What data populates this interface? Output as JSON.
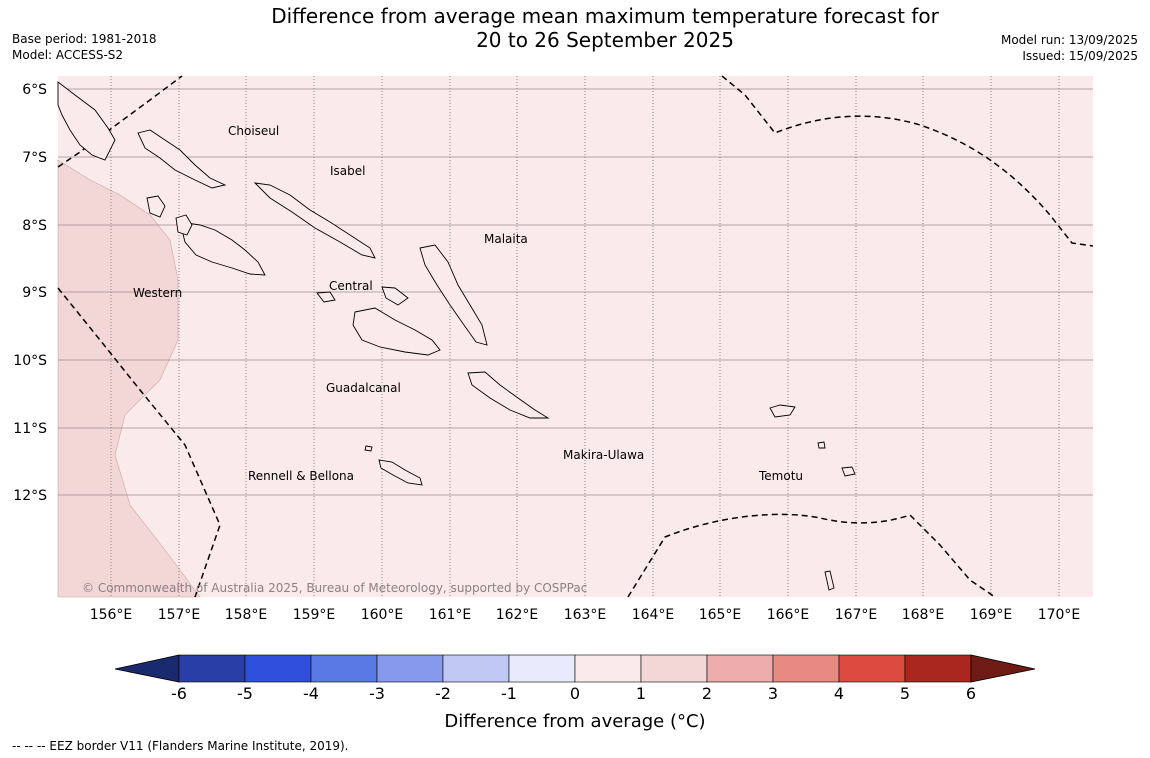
{
  "title_line1": "Difference from average mean maximum temperature forecast for",
  "title_line2": "20 to 26 September 2025",
  "meta_left": {
    "base_period": "Base period: 1981-2018",
    "model": "Model: ACCESS-S2"
  },
  "meta_right": {
    "model_run": "Model run: 13/09/2025",
    "issued": "Issued: 15/09/2025"
  },
  "lat_labels": [
    "6°S",
    "7°S",
    "8°S",
    "9°S",
    "10°S",
    "11°S",
    "12°S"
  ],
  "lon_labels": [
    "156°E",
    "157°E",
    "158°E",
    "159°E",
    "160°E",
    "161°E",
    "162°E",
    "163°E",
    "164°E",
    "165°E",
    "166°E",
    "167°E",
    "168°E",
    "169°E",
    "170°E"
  ],
  "regions": [
    "Choiseul",
    "Isabel",
    "Malaita",
    "Western",
    "Central",
    "Guadalcanal",
    "Rennell & Bellona",
    "Makira-Ulawa",
    "Temotu"
  ],
  "copyright": "© Commonwealth of Australia 2025, Bureau of Meteorology, supported by COSPPac",
  "colorbar": {
    "ticks": [
      "-6",
      "-5",
      "-4",
      "-3",
      "-2",
      "-1",
      "0",
      "1",
      "2",
      "3",
      "4",
      "5",
      "6"
    ],
    "label": "Difference from average (°C)",
    "colors": [
      "#2a3ea8",
      "#2f50dc",
      "#5a78e4",
      "#8699ec",
      "#c0c9f3",
      "#e8ebfb",
      "#fbeaea",
      "#f3d6d6",
      "#eeadad",
      "#e88a84",
      "#dc4a40",
      "#a9271f"
    ],
    "extend_low": "#1a2a6e",
    "extend_high": "#6e1b16"
  },
  "map_fill": {
    "main": "#fbeaea",
    "warm": "#f3d6d6",
    "ocean_line": "#000000"
  },
  "footer": "-- -- -- EEZ border V11 (Flanders Marine Institute, 2019)."
}
